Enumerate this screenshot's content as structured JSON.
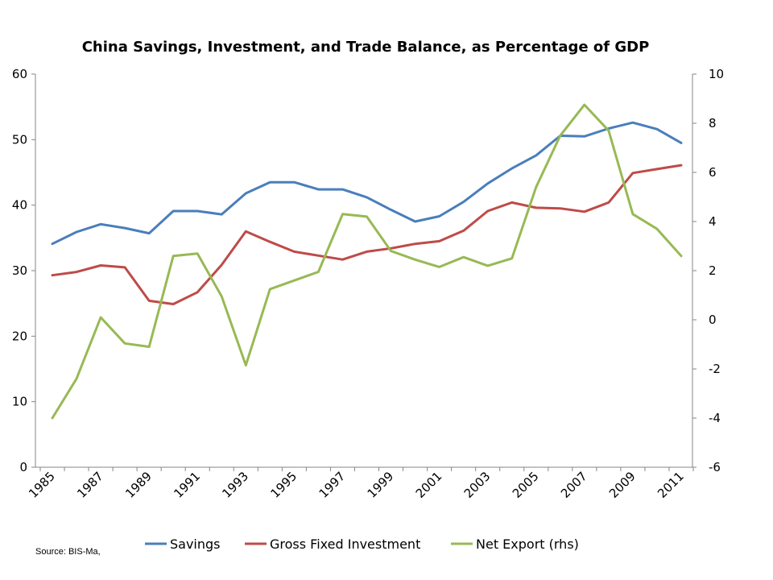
{
  "chart_data": {
    "type": "line",
    "title": "China Savings, Investment, and Trade Balance, as Percentage of GDP",
    "x": [
      1985,
      1986,
      1987,
      1988,
      1989,
      1990,
      1991,
      1992,
      1993,
      1994,
      1995,
      1996,
      1997,
      1998,
      1999,
      2000,
      2001,
      2002,
      2003,
      2004,
      2005,
      2006,
      2007,
      2008,
      2009,
      2010,
      2011
    ],
    "x_tick_labels": [
      "1985",
      "1987",
      "1989",
      "1991",
      "1993",
      "1995",
      "1997",
      "1999",
      "2001",
      "2003",
      "2005",
      "2007",
      "2009",
      "2011"
    ],
    "y_left": {
      "ylim": [
        0,
        60
      ],
      "ticks": [
        "0",
        "10",
        "20",
        "30",
        "40",
        "50",
        "60"
      ]
    },
    "y_right": {
      "ylim": [
        -6,
        10
      ],
      "ticks": [
        "-6",
        "-4",
        "-2",
        "0",
        "2",
        "4",
        "6",
        "8",
        "10"
      ]
    },
    "series": [
      {
        "name": "Savings",
        "axis": "left",
        "color": "#4a7ebb",
        "values": [
          34.1,
          35.9,
          37.1,
          36.5,
          35.7,
          39.1,
          39.1,
          38.6,
          41.8,
          43.5,
          43.5,
          42.4,
          42.4,
          41.2,
          39.3,
          37.5,
          38.3,
          40.5,
          43.3,
          45.6,
          47.6,
          50.6,
          50.5,
          51.7,
          52.6,
          51.6,
          49.5
        ]
      },
      {
        "name": "Gross Fixed Investment",
        "axis": "left",
        "color": "#be4b48",
        "values": [
          29.3,
          29.8,
          30.8,
          30.5,
          25.4,
          24.9,
          26.7,
          30.9,
          36.0,
          34.4,
          32.9,
          32.3,
          31.7,
          32.9,
          33.4,
          34.1,
          34.5,
          36.1,
          39.1,
          40.4,
          39.6,
          39.5,
          39.0,
          40.4,
          44.9,
          45.5,
          46.1
        ]
      },
      {
        "name": "Net Export (rhs)",
        "axis": "right",
        "color": "#98b954",
        "values": [
          -4.0,
          -2.4,
          0.1,
          -0.96,
          -1.1,
          2.6,
          2.7,
          0.95,
          -1.85,
          1.25,
          1.6,
          1.95,
          4.3,
          4.2,
          2.8,
          2.45,
          2.15,
          2.55,
          2.2,
          2.5,
          5.4,
          7.5,
          8.75,
          7.7,
          4.3,
          3.7,
          2.6
        ]
      }
    ],
    "legend_position": "bottom",
    "source": "Source:  BIS-Ma,"
  }
}
